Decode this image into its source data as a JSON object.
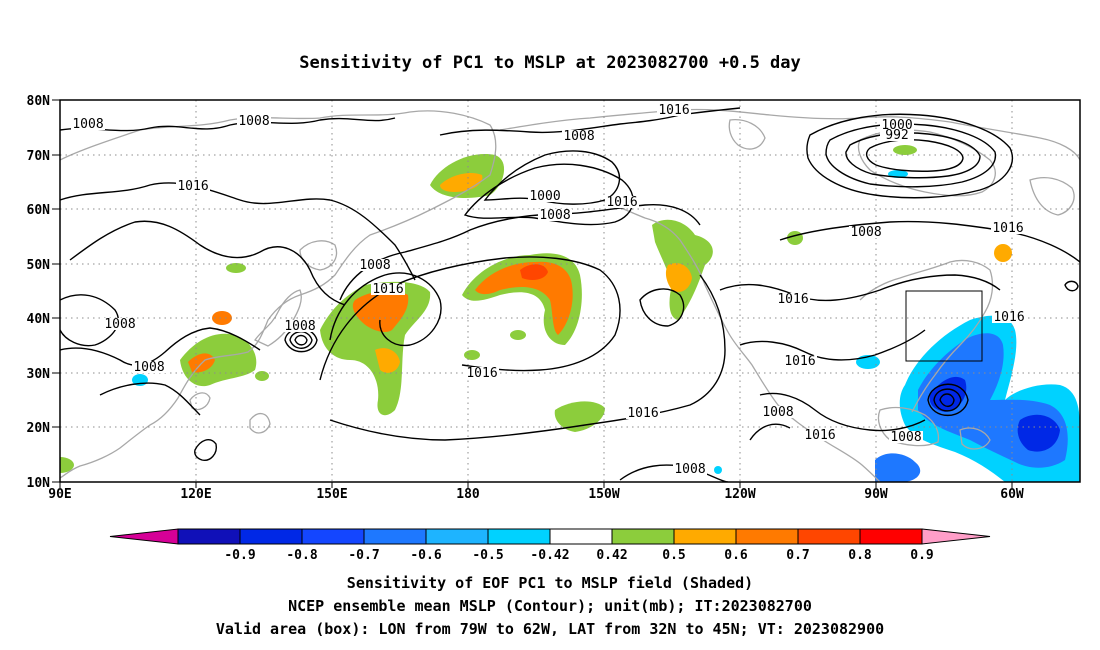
{
  "title": "Sensitivity of PC1 to MSLP at 2023082700 +0.5 day",
  "lat_labels": [
    "80N",
    "70N",
    "60N",
    "50N",
    "40N",
    "30N",
    "20N",
    "10N"
  ],
  "lon_labels": [
    "90E",
    "120E",
    "150E",
    "180",
    "150W",
    "120W",
    "90W",
    "60W"
  ],
  "contour_labels": [
    {
      "text": "1008"
    },
    {
      "text": "1008"
    },
    {
      "text": "1016"
    },
    {
      "text": "1008"
    },
    {
      "text": "1016"
    },
    {
      "text": "1008"
    },
    {
      "text": "1008"
    },
    {
      "text": "1008"
    },
    {
      "text": "1016"
    },
    {
      "text": "1008"
    },
    {
      "text": "1000"
    },
    {
      "text": "1008"
    },
    {
      "text": "1016"
    },
    {
      "text": "1016"
    },
    {
      "text": "1000"
    },
    {
      "text": "992"
    },
    {
      "text": "1008"
    },
    {
      "text": "1016"
    },
    {
      "text": "1016"
    },
    {
      "text": "1016"
    },
    {
      "text": "1016"
    },
    {
      "text": "1008"
    },
    {
      "text": "1016"
    },
    {
      "text": "1008"
    },
    {
      "text": "1008"
    },
    {
      "text": "1016"
    }
  ],
  "colorbar": {
    "colors": [
      "#d60097",
      "#1010b8",
      "#0028e6",
      "#1446ff",
      "#1e78ff",
      "#1eb4ff",
      "#00d2ff",
      "#ffffff",
      "#8ccd3c",
      "#ffaa00",
      "#ff7a00",
      "#ff4600",
      "#ff0000",
      "#ff9ec8"
    ],
    "tick_labels": [
      "-0.9",
      "-0.8",
      "-0.7",
      "-0.6",
      "-0.5",
      "-0.42",
      "0.42",
      "0.5",
      "0.6",
      "0.7",
      "0.8",
      "0.9"
    ]
  },
  "caption": {
    "line1": "Sensitivity of EOF PC1 to MSLP field (Shaded)",
    "line2": "NCEP ensemble mean MSLP (Contour); unit(mb); IT:2023082700",
    "line3": "Valid area (box): LON from 79W to 62W, LAT from 32N to 45N; VT: 2023082900"
  },
  "valid_box": {
    "lon_min": -79,
    "lon_max": -62,
    "lat_min": 32,
    "lat_max": 45
  }
}
